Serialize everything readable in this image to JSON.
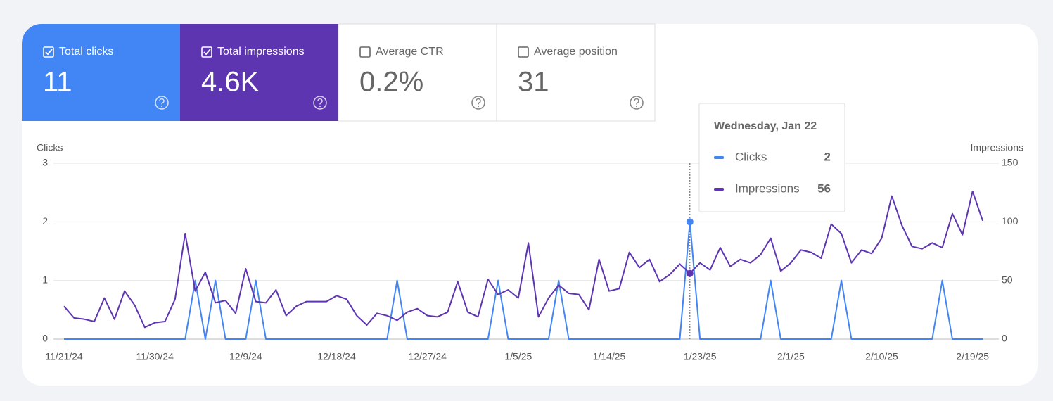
{
  "metrics": [
    {
      "label": "Total clicks",
      "value": "11",
      "selected": true,
      "color": "#4285f4"
    },
    {
      "label": "Total impressions",
      "value": "4.6K",
      "selected": true,
      "color": "#5e35b1"
    },
    {
      "label": "Average CTR",
      "value": "0.2%",
      "selected": false,
      "color": "#ffffff"
    },
    {
      "label": "Average position",
      "value": "31",
      "selected": false,
      "color": "#ffffff"
    }
  ],
  "chart_data": {
    "type": "line",
    "y_label": "Clicks",
    "y2_label": "Impressions",
    "categories": [
      "11/21/24",
      null,
      null,
      null,
      null,
      null,
      null,
      null,
      null,
      "11/30/24",
      null,
      null,
      null,
      null,
      null,
      null,
      null,
      null,
      "12/9/24",
      null,
      null,
      null,
      null,
      null,
      null,
      null,
      null,
      "12/18/24",
      null,
      null,
      null,
      null,
      null,
      null,
      null,
      null,
      "12/27/24",
      null,
      null,
      null,
      null,
      null,
      null,
      null,
      null,
      "1/5/25",
      null,
      null,
      null,
      null,
      null,
      null,
      null,
      null,
      "1/14/25",
      null,
      null,
      null,
      null,
      null,
      null,
      null,
      null,
      "1/23/25",
      null,
      null,
      null,
      null,
      null,
      null,
      null,
      null,
      "2/1/25",
      null,
      null,
      null,
      null,
      null,
      null,
      null,
      null,
      "2/10/25",
      null,
      null,
      null,
      null,
      null,
      null,
      null,
      null,
      "2/19/25",
      null
    ],
    "series": [
      {
        "name": "Clicks",
        "color": "#4285f4",
        "axis": "y",
        "values": [
          0,
          0,
          0,
          0,
          0,
          0,
          0,
          0,
          0,
          0,
          0,
          0,
          0,
          1,
          0,
          1,
          0,
          0,
          0,
          1,
          0,
          0,
          0,
          0,
          0,
          0,
          0,
          0,
          0,
          0,
          0,
          0,
          0,
          1,
          0,
          0,
          0,
          0,
          0,
          0,
          0,
          0,
          0,
          1,
          0,
          0,
          0,
          0,
          0,
          1,
          0,
          0,
          0,
          0,
          0,
          0,
          0,
          0,
          0,
          0,
          0,
          0,
          2,
          0,
          0,
          0,
          0,
          0,
          0,
          0,
          1,
          0,
          0,
          0,
          0,
          0,
          0,
          1,
          0,
          0,
          0,
          0,
          0,
          0,
          0,
          0,
          0,
          1,
          0,
          0,
          0,
          0
        ]
      },
      {
        "name": "Impressions",
        "color": "#5e35b1",
        "axis": "y2",
        "values": [
          28,
          18,
          17,
          15,
          35,
          17,
          41,
          29,
          10,
          14,
          15,
          34,
          90,
          41,
          57,
          31,
          33,
          22,
          60,
          32,
          31,
          42,
          20,
          28,
          32,
          32,
          32,
          37,
          34,
          20,
          12,
          22,
          20,
          16,
          23,
          26,
          20,
          19,
          23,
          49,
          23,
          19,
          51,
          38,
          42,
          35,
          82,
          19,
          35,
          46,
          39,
          38,
          25,
          68,
          41,
          43,
          74,
          61,
          68,
          49,
          55,
          64,
          56,
          65,
          59,
          78,
          62,
          68,
          65,
          72,
          86,
          58,
          65,
          76,
          74,
          69,
          98,
          90,
          65,
          76,
          73,
          86,
          122,
          97,
          79,
          77,
          82,
          78,
          107,
          89,
          126,
          101
        ]
      }
    ],
    "ylim": [
      0,
      3
    ],
    "yticks": [
      0,
      1,
      2,
      3
    ],
    "y2lim": [
      0,
      150
    ],
    "y2ticks": [
      0,
      50,
      100,
      150
    ],
    "grid": true,
    "hover_index": 62,
    "tooltip_title": "Wednesday, Jan 22"
  }
}
